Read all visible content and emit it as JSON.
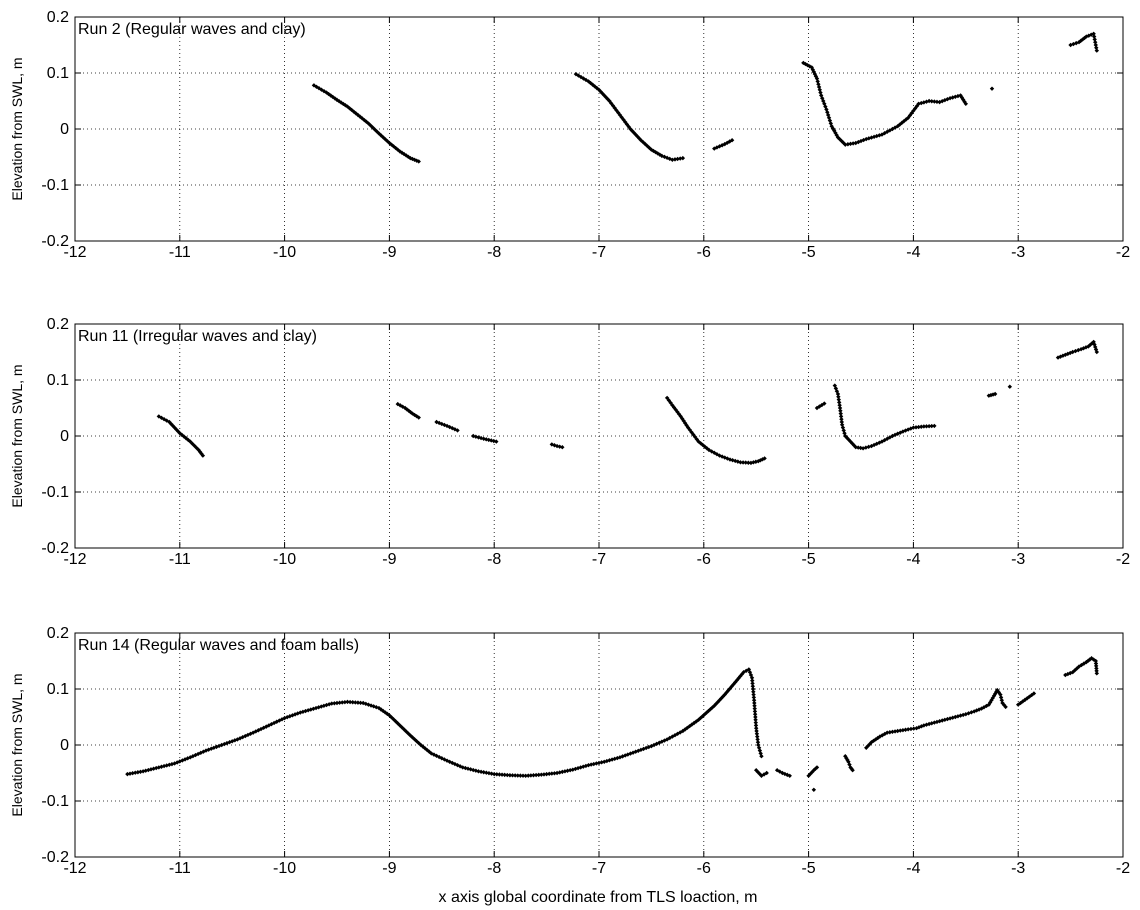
{
  "figure": {
    "xlabel": "x axis global coordinate from TLS loaction, m"
  },
  "chart_data": [
    {
      "type": "scatter",
      "title": "Run 2 (Regular waves and clay)",
      "xlabel": "",
      "ylabel": "Elevation from SWL, m",
      "xlim": [
        -12,
        -2
      ],
      "ylim": [
        -0.2,
        0.2
      ],
      "xticks": [
        -12,
        -11,
        -10,
        -9,
        -8,
        -7,
        -6,
        -5,
        -4,
        -3,
        -2
      ],
      "yticks": [
        -0.2,
        -0.1,
        0,
        0.1,
        0.2
      ],
      "grid": true,
      "marker_color": "#000000",
      "segments": [
        [
          [
            -9.72,
            0.078
          ],
          [
            -9.6,
            0.065
          ],
          [
            -9.5,
            0.052
          ],
          [
            -9.4,
            0.04
          ],
          [
            -9.3,
            0.025
          ],
          [
            -9.2,
            0.01
          ],
          [
            -9.1,
            -0.008
          ],
          [
            -9.0,
            -0.025
          ],
          [
            -8.9,
            -0.04
          ],
          [
            -8.8,
            -0.052
          ],
          [
            -8.72,
            -0.058
          ]
        ],
        [
          [
            -7.22,
            0.098
          ],
          [
            -7.1,
            0.085
          ],
          [
            -7.0,
            0.07
          ],
          [
            -6.9,
            0.05
          ],
          [
            -6.8,
            0.025
          ],
          [
            -6.7,
            0.0
          ],
          [
            -6.6,
            -0.02
          ],
          [
            -6.5,
            -0.037
          ],
          [
            -6.4,
            -0.048
          ],
          [
            -6.3,
            -0.055
          ],
          [
            -6.2,
            -0.052
          ]
        ],
        [
          [
            -5.9,
            -0.035
          ],
          [
            -5.8,
            -0.027
          ],
          [
            -5.73,
            -0.02
          ]
        ],
        [
          [
            -5.05,
            0.118
          ],
          [
            -4.97,
            0.11
          ],
          [
            -4.92,
            0.09
          ],
          [
            -4.88,
            0.06
          ],
          [
            -4.83,
            0.035
          ],
          [
            -4.78,
            0.005
          ],
          [
            -4.72,
            -0.015
          ],
          [
            -4.65,
            -0.028
          ],
          [
            -4.55,
            -0.025
          ],
          [
            -4.45,
            -0.018
          ],
          [
            -4.3,
            -0.01
          ],
          [
            -4.15,
            0.005
          ],
          [
            -4.05,
            0.02
          ],
          [
            -3.95,
            0.045
          ],
          [
            -3.85,
            0.05
          ],
          [
            -3.75,
            0.048
          ],
          [
            -3.65,
            0.055
          ],
          [
            -3.55,
            0.06
          ],
          [
            -3.5,
            0.045
          ]
        ],
        [
          [
            -3.25,
            0.072
          ]
        ],
        [
          [
            -2.5,
            0.15
          ],
          [
            -2.42,
            0.155
          ],
          [
            -2.35,
            0.165
          ],
          [
            -2.28,
            0.17
          ],
          [
            -2.25,
            0.14
          ]
        ]
      ]
    },
    {
      "type": "scatter",
      "title": "Run 11 (Irregular waves and clay)",
      "xlabel": "",
      "ylabel": "Elevation from SWL, m",
      "xlim": [
        -12,
        -2
      ],
      "ylim": [
        -0.2,
        0.2
      ],
      "xticks": [
        -12,
        -11,
        -10,
        -9,
        -8,
        -7,
        -6,
        -5,
        -4,
        -3,
        -2
      ],
      "yticks": [
        -0.2,
        -0.1,
        0,
        0.1,
        0.2
      ],
      "grid": true,
      "marker_color": "#000000",
      "segments": [
        [
          [
            -11.2,
            0.035
          ],
          [
            -11.1,
            0.025
          ],
          [
            -11.0,
            0.005
          ],
          [
            -10.9,
            -0.01
          ],
          [
            -10.82,
            -0.025
          ],
          [
            -10.78,
            -0.035
          ]
        ],
        [
          [
            -8.92,
            0.057
          ],
          [
            -8.85,
            0.05
          ],
          [
            -8.78,
            0.04
          ],
          [
            -8.72,
            0.033
          ]
        ],
        [
          [
            -8.55,
            0.025
          ],
          [
            -8.45,
            0.018
          ],
          [
            -8.35,
            0.01
          ]
        ],
        [
          [
            -8.2,
            0.0
          ],
          [
            -8.1,
            -0.005
          ],
          [
            -7.98,
            -0.01
          ]
        ],
        [
          [
            -7.45,
            -0.015
          ],
          [
            -7.4,
            -0.018
          ],
          [
            -7.35,
            -0.02
          ]
        ],
        [
          [
            -6.35,
            0.068
          ],
          [
            -6.3,
            0.055
          ],
          [
            -6.22,
            0.035
          ],
          [
            -6.15,
            0.015
          ],
          [
            -6.05,
            -0.01
          ],
          [
            -5.95,
            -0.025
          ],
          [
            -5.85,
            -0.035
          ],
          [
            -5.75,
            -0.042
          ],
          [
            -5.65,
            -0.047
          ],
          [
            -5.55,
            -0.048
          ],
          [
            -5.48,
            -0.045
          ],
          [
            -5.42,
            -0.04
          ]
        ],
        [
          [
            -4.92,
            0.05
          ],
          [
            -4.85,
            0.058
          ]
        ],
        [
          [
            -4.75,
            0.09
          ],
          [
            -4.72,
            0.075
          ],
          [
            -4.7,
            0.05
          ],
          [
            -4.68,
            0.02
          ],
          [
            -4.65,
            0.0
          ],
          [
            -4.6,
            -0.01
          ],
          [
            -4.55,
            -0.02
          ],
          [
            -4.48,
            -0.022
          ],
          [
            -4.4,
            -0.018
          ],
          [
            -4.3,
            -0.01
          ],
          [
            -4.2,
            0.0
          ],
          [
            -4.1,
            0.008
          ],
          [
            -4.0,
            0.015
          ],
          [
            -3.9,
            0.017
          ],
          [
            -3.8,
            0.018
          ]
        ],
        [
          [
            -3.28,
            0.072
          ],
          [
            -3.22,
            0.075
          ]
        ],
        [
          [
            -3.08,
            0.088
          ]
        ],
        [
          [
            -2.62,
            0.14
          ],
          [
            -2.55,
            0.145
          ],
          [
            -2.48,
            0.15
          ],
          [
            -2.4,
            0.155
          ],
          [
            -2.33,
            0.16
          ],
          [
            -2.28,
            0.168
          ],
          [
            -2.25,
            0.15
          ]
        ]
      ]
    },
    {
      "type": "scatter",
      "title": "Run 14 (Regular waves and foam balls)",
      "xlabel": "x axis global coordinate from TLS loaction, m",
      "ylabel": "Elevation from SWL, m",
      "xlim": [
        -12,
        -2
      ],
      "ylim": [
        -0.2,
        0.2
      ],
      "xticks": [
        -12,
        -11,
        -10,
        -9,
        -8,
        -7,
        -6,
        -5,
        -4,
        -3,
        -2
      ],
      "yticks": [
        -0.2,
        -0.1,
        0,
        0.1,
        0.2
      ],
      "grid": true,
      "marker_color": "#000000",
      "segments": [
        [
          [
            -11.5,
            -0.052
          ],
          [
            -11.35,
            -0.047
          ],
          [
            -11.2,
            -0.04
          ],
          [
            -11.05,
            -0.033
          ],
          [
            -10.9,
            -0.022
          ],
          [
            -10.75,
            -0.01
          ],
          [
            -10.6,
            0.0
          ],
          [
            -10.45,
            0.01
          ],
          [
            -10.3,
            0.022
          ],
          [
            -10.15,
            0.035
          ],
          [
            -10.0,
            0.048
          ],
          [
            -9.85,
            0.058
          ],
          [
            -9.7,
            0.066
          ],
          [
            -9.55,
            0.074
          ],
          [
            -9.4,
            0.077
          ],
          [
            -9.25,
            0.075
          ],
          [
            -9.1,
            0.066
          ],
          [
            -9.0,
            0.053
          ],
          [
            -8.9,
            0.035
          ],
          [
            -8.8,
            0.017
          ],
          [
            -8.7,
            0.0
          ],
          [
            -8.6,
            -0.015
          ],
          [
            -8.45,
            -0.028
          ],
          [
            -8.3,
            -0.04
          ],
          [
            -8.15,
            -0.047
          ],
          [
            -8.0,
            -0.052
          ],
          [
            -7.85,
            -0.054
          ],
          [
            -7.7,
            -0.055
          ],
          [
            -7.55,
            -0.053
          ],
          [
            -7.4,
            -0.05
          ],
          [
            -7.25,
            -0.044
          ],
          [
            -7.1,
            -0.036
          ],
          [
            -6.95,
            -0.03
          ],
          [
            -6.8,
            -0.022
          ],
          [
            -6.65,
            -0.012
          ],
          [
            -6.5,
            -0.002
          ],
          [
            -6.35,
            0.01
          ],
          [
            -6.2,
            0.025
          ],
          [
            -6.05,
            0.045
          ],
          [
            -5.9,
            0.07
          ],
          [
            -5.8,
            0.09
          ],
          [
            -5.7,
            0.112
          ],
          [
            -5.62,
            0.13
          ],
          [
            -5.57,
            0.135
          ],
          [
            -5.54,
            0.12
          ],
          [
            -5.52,
            0.08
          ],
          [
            -5.5,
            0.03
          ],
          [
            -5.48,
            0.0
          ],
          [
            -5.45,
            -0.02
          ]
        ],
        [
          [
            -5.5,
            -0.045
          ],
          [
            -5.45,
            -0.055
          ],
          [
            -5.4,
            -0.05
          ]
        ],
        [
          [
            -5.3,
            -0.045
          ],
          [
            -5.25,
            -0.05
          ],
          [
            -5.18,
            -0.055
          ]
        ],
        [
          [
            -5.0,
            -0.055
          ],
          [
            -4.95,
            -0.045
          ],
          [
            -4.92,
            -0.04
          ]
        ],
        [
          [
            -4.95,
            -0.08
          ]
        ],
        [
          [
            -4.65,
            -0.02
          ],
          [
            -4.62,
            -0.03
          ],
          [
            -4.6,
            -0.04
          ],
          [
            -4.58,
            -0.045
          ]
        ],
        [
          [
            -4.45,
            -0.005
          ],
          [
            -4.4,
            0.005
          ],
          [
            -4.32,
            0.015
          ],
          [
            -4.25,
            0.022
          ],
          [
            -4.15,
            0.025
          ],
          [
            -4.05,
            0.028
          ],
          [
            -3.97,
            0.03
          ],
          [
            -3.9,
            0.035
          ],
          [
            -3.8,
            0.04
          ],
          [
            -3.7,
            0.045
          ],
          [
            -3.6,
            0.05
          ],
          [
            -3.5,
            0.055
          ],
          [
            -3.42,
            0.06
          ],
          [
            -3.35,
            0.065
          ],
          [
            -3.28,
            0.072
          ],
          [
            -3.23,
            0.088
          ],
          [
            -3.2,
            0.098
          ],
          [
            -3.17,
            0.09
          ],
          [
            -3.15,
            0.075
          ],
          [
            -3.12,
            0.068
          ]
        ],
        [
          [
            -3.0,
            0.072
          ],
          [
            -2.85,
            0.092
          ]
        ],
        [
          [
            -2.55,
            0.125
          ],
          [
            -2.48,
            0.13
          ],
          [
            -2.42,
            0.14
          ],
          [
            -2.35,
            0.148
          ],
          [
            -2.3,
            0.155
          ],
          [
            -2.26,
            0.15
          ],
          [
            -2.25,
            0.128
          ]
        ]
      ]
    }
  ]
}
